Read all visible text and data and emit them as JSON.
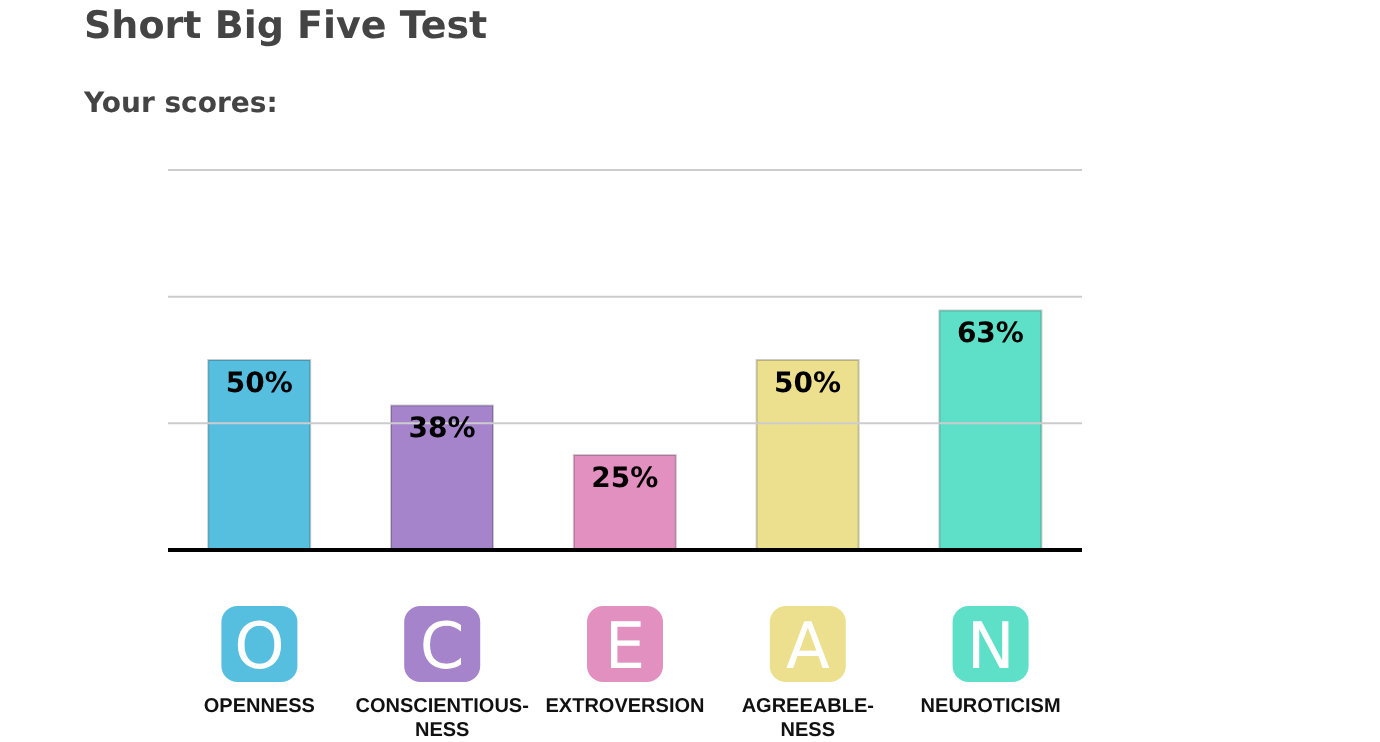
{
  "chart_data": {
    "type": "bar",
    "title": "Short Big Five Test",
    "subtitle": "Your scores:",
    "categories": [
      "OPENNESS",
      "CONSCIENTIOUS-\nNESS",
      "EXTROVERSION",
      "AGREEABLE-\nNESS",
      "NEUROTICISM"
    ],
    "annotations": [
      "O",
      "C",
      "E",
      "A",
      "N"
    ],
    "values": [
      50,
      38,
      25,
      50,
      63
    ],
    "value_labels": [
      "50%",
      "38%",
      "25%",
      "50%",
      "63%"
    ],
    "colors": [
      "#56bfe0",
      "#a584cc",
      "#e290c0",
      "#ece08f",
      "#5ee0c8"
    ],
    "ylim": [
      0,
      100
    ],
    "yticks": [
      {
        "value": 33.33,
        "label": null
      },
      {
        "value": 66.67,
        "label": null
      },
      {
        "value": 100,
        "label": null
      }
    ],
    "grid": "y",
    "tick_labels": "x"
  }
}
